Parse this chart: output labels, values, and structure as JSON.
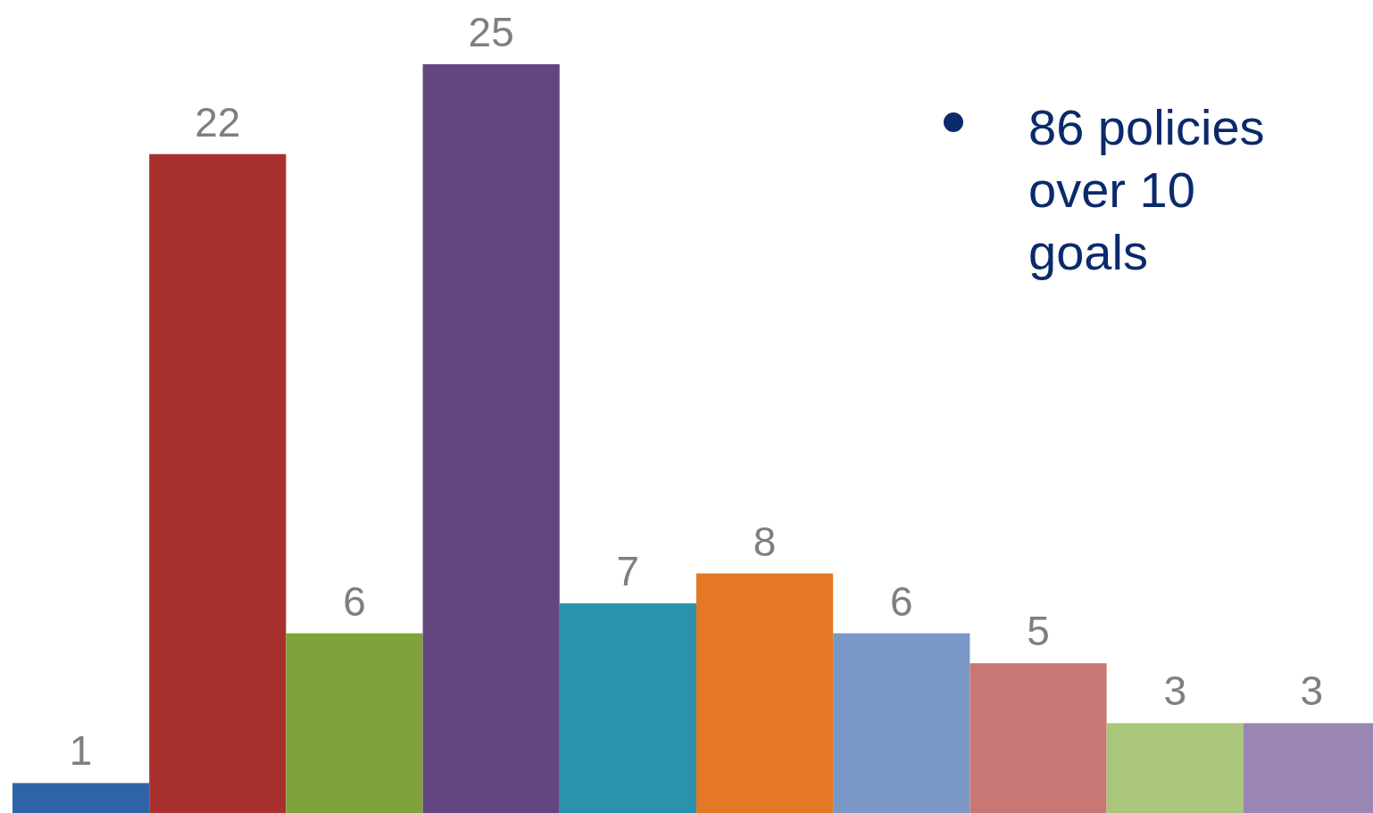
{
  "chart_data": {
    "type": "bar",
    "categories": [
      null,
      null,
      null,
      null,
      null,
      null,
      null,
      null,
      null,
      null
    ],
    "values": [
      1,
      22,
      6,
      25,
      7,
      8,
      6,
      5,
      3,
      3
    ],
    "colors": [
      "#2e63a8",
      "#a8302e",
      "#7fa33a",
      "#63457f",
      "#2b92ad",
      "#e57824",
      "#7b97c6",
      "#c97774",
      "#aac67b",
      "#9a86b3"
    ],
    "data_labels": true,
    "annotations": [
      "86 policies over 10 goals"
    ]
  }
}
